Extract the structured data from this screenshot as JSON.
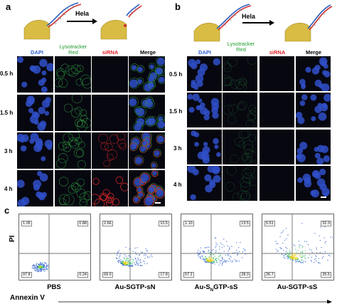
{
  "panels": {
    "a": "a",
    "b": "b",
    "c": "c"
  },
  "scheme": {
    "arrow_label": "Hela"
  },
  "columns": {
    "dapi": "DAPI",
    "lyso": "Lysotracker\nRed",
    "sirna": "siRNA",
    "merge": "Merge"
  },
  "rows": [
    "0.5 h",
    "1.5 h",
    "3 h",
    "4 h"
  ],
  "colors": {
    "dapi": "#2f5fd0",
    "lyso": "#1a9a2a",
    "sirna": "#e0202a"
  },
  "flow": {
    "y_axis": "PI",
    "x_axis": "Annexin V",
    "plots": [
      {
        "sample": "PBS",
        "q": [
          "1.05",
          "0.88",
          "97.8",
          "0.24"
        ]
      },
      {
        "sample": "Au-SGTP-sN",
        "q": [
          "2.66",
          "10.5",
          "69.0",
          "17.8"
        ]
      },
      {
        "sample": "Au-S",
        "sample_sub": "N",
        "sample_tail": "GTP-sS",
        "q": [
          "1.10",
          "13.5",
          "57.2",
          "28.3"
        ]
      },
      {
        "sample": "Au-SGTP-sS",
        "q": [
          "5.51",
          "32.3",
          "26.7",
          "35.5"
        ]
      }
    ]
  }
}
